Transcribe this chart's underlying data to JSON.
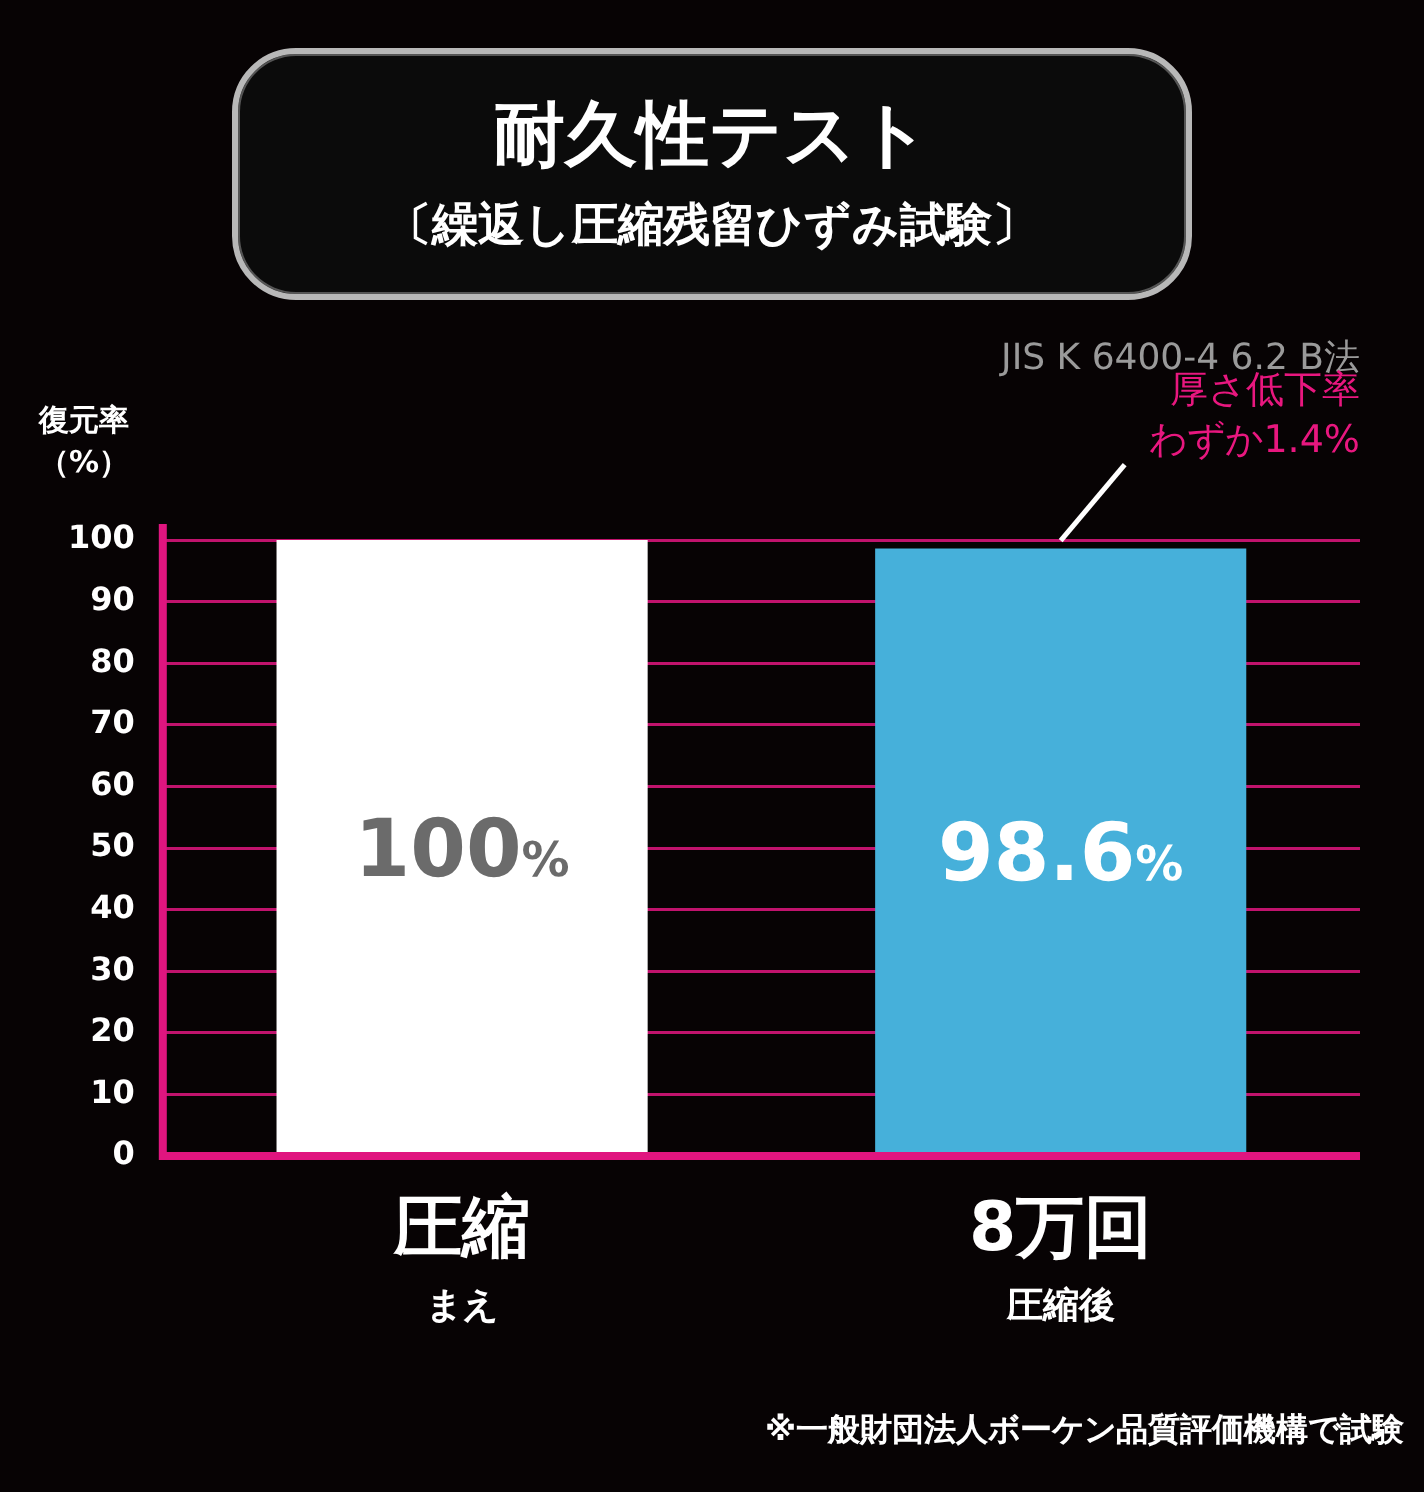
{
  "chart_data": {
    "type": "bar",
    "title": "耐久性テスト",
    "subtitle": "〔繰返し圧縮残留ひずみ試験〕",
    "ylabel": "復元率（%）",
    "categories": [
      "圧縮",
      "8万回"
    ],
    "values": [
      100,
      98.6
    ],
    "colors": [
      "#ffffff",
      "#46b0da"
    ],
    "value_labels": [
      "100%",
      "98.6%"
    ],
    "ylim": [
      0,
      100
    ],
    "yticks": [
      0,
      10,
      20,
      30,
      40,
      50,
      60,
      70,
      80,
      90,
      100
    ],
    "grid": "y",
    "annotations": [
      "JIS K 6400-4 6.2 B法",
      {
        "text": "厚さ低下率わずか1.4%",
        "x": "8万回",
        "y": 98.6
      },
      "まえ",
      "圧縮後",
      "※一般財団法人ボーケン品質評価機構で試験"
    ]
  }
}
